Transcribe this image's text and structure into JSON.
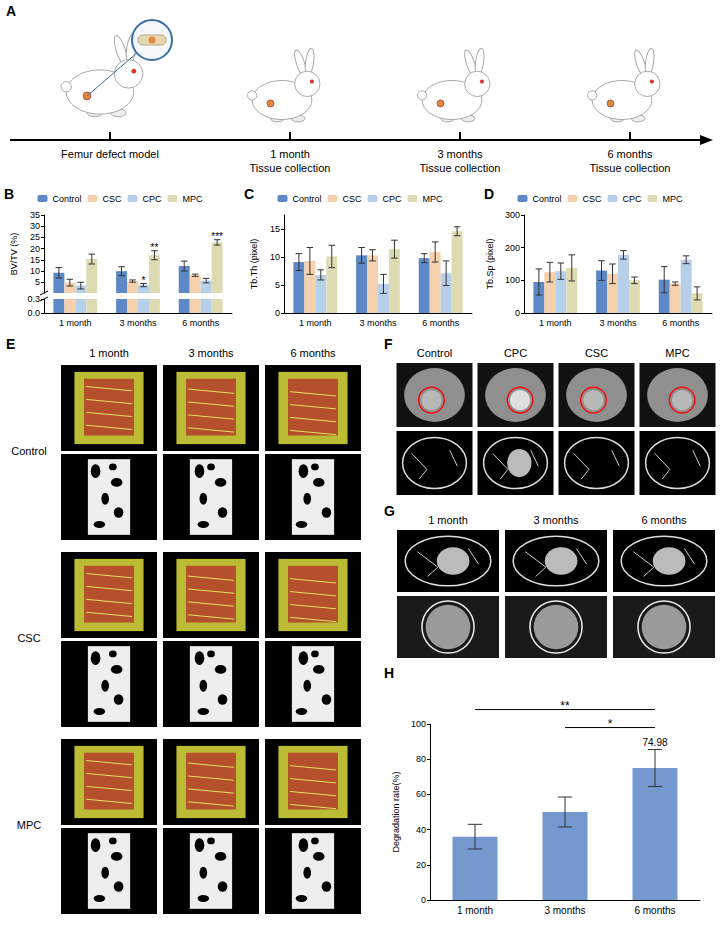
{
  "figure": {
    "A": {
      "letter": "A",
      "timeline": [
        {
          "label": "Femur defect model"
        },
        {
          "label": "1 month",
          "sublabel": "Tissue collection"
        },
        {
          "label": "3 months",
          "sublabel": "Tissue collection"
        },
        {
          "label": "6 months",
          "sublabel": "Tissue collection"
        }
      ]
    },
    "E": {
      "letter": "E",
      "columns": [
        "1 month",
        "3 months",
        "6 months"
      ],
      "rows": [
        "Control",
        "CSC",
        "MPC"
      ]
    },
    "F": {
      "letter": "F",
      "columns": [
        "Control",
        "CPC",
        "CSC",
        "MPC"
      ]
    },
    "G": {
      "letter": "G",
      "columns": [
        "1 month",
        "3 months",
        "6 months"
      ]
    }
  },
  "chart_data": [
    {
      "letter": "B",
      "type": "bar",
      "y_label": "BV/TV (%)",
      "categories": [
        "1 month",
        "3 months",
        "6 months"
      ],
      "series": [
        {
          "name": "Control",
          "color": "#5d8ac6",
          "values": [
            9.3,
            10.0,
            12.3
          ],
          "errors": [
            2.3,
            2.0,
            2.2
          ]
        },
        {
          "name": "CSC",
          "color": "#f6d1ad",
          "values": [
            4.9,
            5.6,
            8.2
          ],
          "errors": [
            1.5,
            0.5,
            0.5
          ]
        },
        {
          "name": "CPC",
          "color": "#b7cfe9",
          "values": [
            3.6,
            3.8,
            5.8
          ],
          "errors": [
            1.5,
            0.7,
            1.0
          ],
          "annotations": [
            null,
            "*",
            null
          ]
        },
        {
          "name": "MPC",
          "color": "#dedbb2",
          "values": [
            15.4,
            17.1,
            22.8
          ],
          "errors": [
            2.2,
            2.0,
            1.2
          ],
          "annotations": [
            null,
            "**",
            "***"
          ]
        }
      ],
      "ylim": [
        0,
        35
      ],
      "yticks": [
        {
          "value": 0,
          "label": "0.0"
        },
        {
          "value": 0.3,
          "label": "0.3"
        },
        5,
        10,
        15,
        20,
        25,
        30,
        35
      ],
      "y_break": 0.3,
      "legend": "top",
      "grid": false
    },
    {
      "letter": "C",
      "type": "bar",
      "y_label": "Tb.Th (pixel)",
      "categories": [
        "1 month",
        "3 months",
        "6 months"
      ],
      "series": [
        {
          "name": "Control",
          "color": "#5d8ac6",
          "values": [
            9.1,
            10.3,
            9.8
          ],
          "errors": [
            1.5,
            1.4,
            0.8
          ]
        },
        {
          "name": "CSC",
          "color": "#f6d1ad",
          "values": [
            9.3,
            10.3,
            10.9
          ],
          "errors": [
            2.4,
            1.0,
            1.8
          ]
        },
        {
          "name": "CPC",
          "color": "#b7cfe9",
          "values": [
            6.8,
            5.2,
            7.1
          ],
          "errors": [
            0.9,
            1.7,
            2.2
          ]
        },
        {
          "name": "MPC",
          "color": "#dedbb2",
          "values": [
            10.1,
            11.4,
            14.6
          ],
          "errors": [
            2.0,
            1.6,
            0.8
          ]
        }
      ],
      "ylim": [
        0,
        17.5
      ],
      "yticks": [
        0,
        5,
        10,
        15
      ],
      "legend": "top",
      "grid": false
    },
    {
      "letter": "D",
      "type": "bar",
      "y_label": "Tb.Sp (pixel)",
      "categories": [
        "1 month",
        "3 months",
        "6 months"
      ],
      "series": [
        {
          "name": "Control",
          "color": "#5d8ac6",
          "values": [
            95,
            130,
            102
          ],
          "errors": [
            40,
            30,
            40
          ]
        },
        {
          "name": "CSC",
          "color": "#f6d1ad",
          "values": [
            125,
            120,
            90
          ],
          "errors": [
            30,
            30,
            5
          ]
        },
        {
          "name": "CPC",
          "color": "#b7cfe9",
          "values": [
            128,
            178,
            163
          ],
          "errors": [
            25,
            13,
            12
          ]
        },
        {
          "name": "MPC",
          "color": "#dedbb2",
          "values": [
            138,
            100,
            60
          ],
          "errors": [
            40,
            10,
            20
          ]
        }
      ],
      "ylim": [
        0,
        300
      ],
      "yticks": [
        0,
        100,
        200,
        300
      ],
      "legend": "top",
      "grid": false
    },
    {
      "letter": "H",
      "type": "bar",
      "y_label": "Degradation rate(%)",
      "categories": [
        "1 month",
        "3 months",
        "6 months"
      ],
      "values": [
        36,
        50,
        74.98
      ],
      "errors": [
        7,
        8.5,
        10.5
      ],
      "value_labels": [
        null,
        null,
        "74.98"
      ],
      "color": "#7399cf",
      "comparisons": [
        {
          "from": "3 months",
          "to": "6 months",
          "label": "*"
        },
        {
          "from": "1 month",
          "to": "6 months",
          "label": "**"
        }
      ],
      "ylim": [
        0,
        100
      ],
      "yticks": [
        0,
        20,
        40,
        60,
        80,
        100
      ],
      "grid": false
    }
  ]
}
